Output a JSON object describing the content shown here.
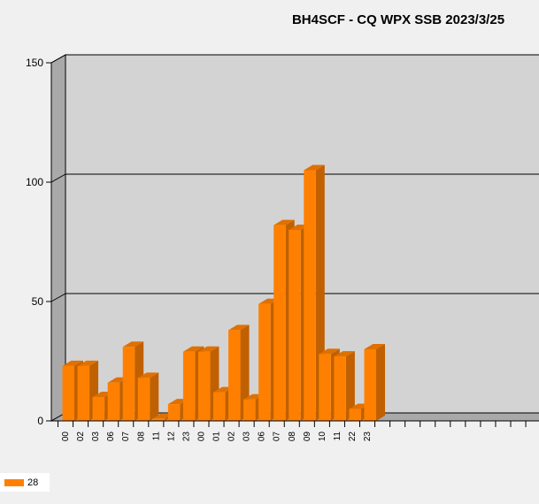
{
  "chart_data": {
    "type": "bar",
    "title": "BH4SCF - CQ WPX SSB 2023/3/25",
    "xlabel": "",
    "ylabel": "",
    "ylim": [
      0,
      150
    ],
    "yticks": [
      0,
      50,
      100,
      150
    ],
    "grid": true,
    "legend_position": "bottom-left",
    "categories": [
      "00",
      "02",
      "03",
      "06",
      "07",
      "08",
      "11",
      "12",
      "23",
      "00",
      "01",
      "02",
      "03",
      "06",
      "07",
      "08",
      "09",
      "10",
      "11",
      "22",
      "23"
    ],
    "series": [
      {
        "name": "28",
        "color": "#ff8000",
        "values": [
          23,
          23,
          10,
          16,
          31,
          18,
          1,
          7,
          29,
          29,
          12,
          38,
          9,
          49,
          82,
          80,
          105,
          28,
          27,
          5,
          30
        ]
      }
    ],
    "empty_slots": 11
  }
}
